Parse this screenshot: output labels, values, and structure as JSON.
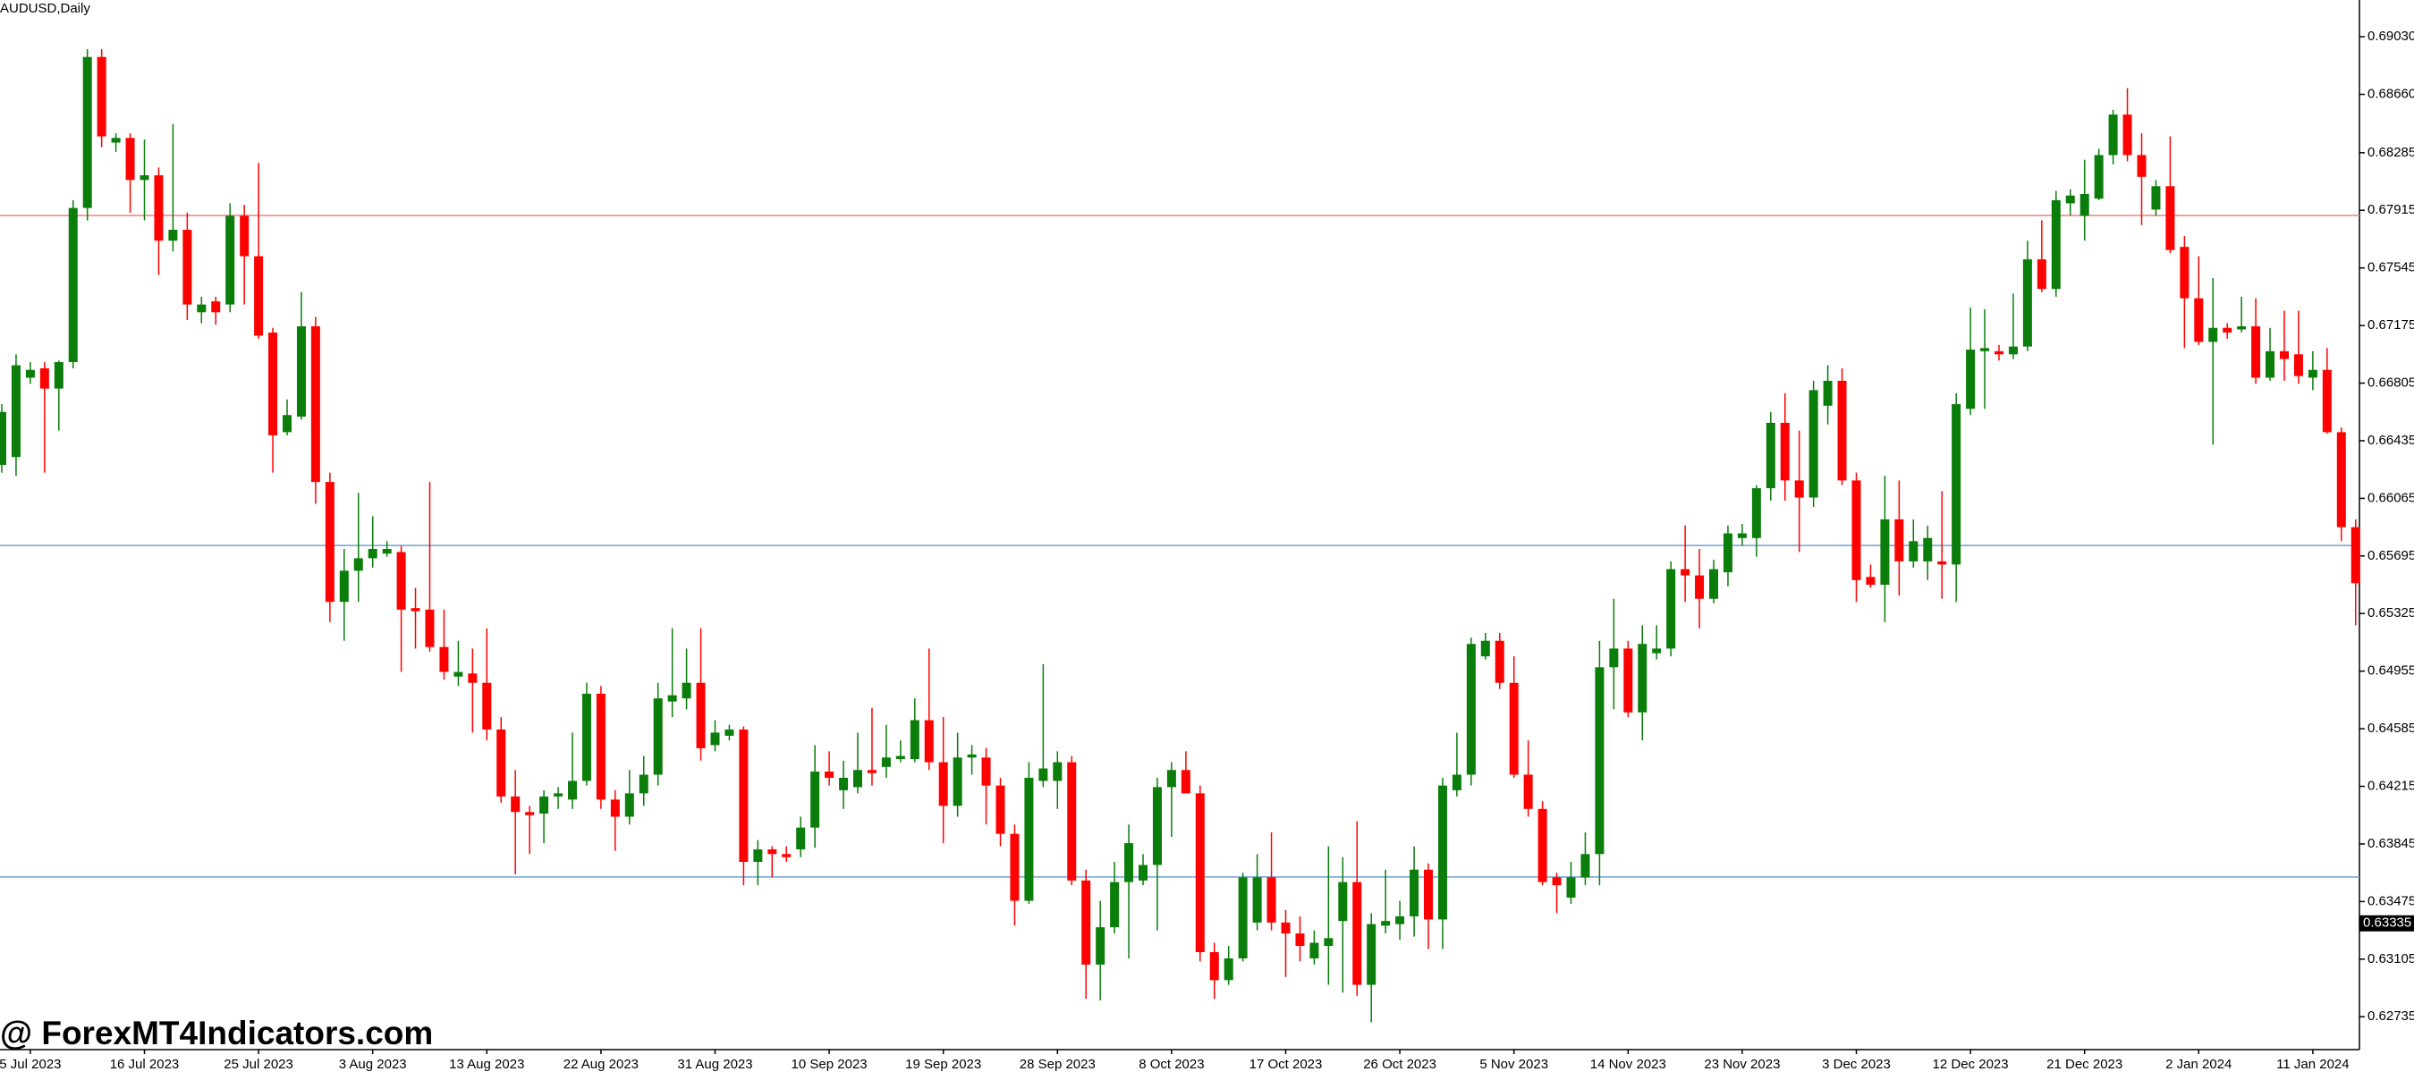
{
  "chart_data": {
    "type": "candlestick",
    "title": "AUDUSD,Daily",
    "watermark": "@ ForexMT4Indicators.com",
    "categories": [
      null,
      null,
      "5 Jul 2023",
      null,
      null,
      null,
      null,
      null,
      null,
      null,
      "16 Jul 2023",
      null,
      null,
      null,
      null,
      null,
      null,
      null,
      "25 Jul 2023",
      null,
      null,
      null,
      null,
      null,
      null,
      null,
      "3 Aug 2023",
      null,
      null,
      null,
      null,
      null,
      null,
      null,
      "13 Aug 2023",
      null,
      null,
      null,
      null,
      null,
      null,
      null,
      "22 Aug 2023",
      null,
      null,
      null,
      null,
      null,
      null,
      null,
      "31 Aug 2023",
      null,
      null,
      null,
      null,
      null,
      null,
      null,
      "10 Sep 2023",
      null,
      null,
      null,
      null,
      null,
      null,
      null,
      "19 Sep 2023",
      null,
      null,
      null,
      null,
      null,
      null,
      null,
      "28 Sep 2023",
      null,
      null,
      null,
      null,
      null,
      null,
      null,
      "8 Oct 2023",
      null,
      null,
      null,
      null,
      null,
      null,
      null,
      "17 Oct 2023",
      null,
      null,
      null,
      null,
      null,
      null,
      null,
      "26 Oct 2023",
      null,
      null,
      null,
      null,
      null,
      null,
      null,
      "5 Nov 2023",
      null,
      null,
      null,
      null,
      null,
      null,
      null,
      "14 Nov 2023",
      null,
      null,
      null,
      null,
      null,
      null,
      null,
      "23 Nov 2023",
      null,
      null,
      null,
      null,
      null,
      null,
      null,
      "3 Dec 2023",
      null,
      null,
      null,
      null,
      null,
      null,
      null,
      "12 Dec 2023",
      null,
      null,
      null,
      null,
      null,
      null,
      null,
      "21 Dec 2023",
      null,
      null,
      null,
      null,
      null,
      null,
      null,
      "2 Jan 2024",
      null,
      null,
      null,
      null,
      null,
      null,
      null,
      "11 Jan 2024",
      null,
      null,
      null
    ],
    "open": [
      0.6628,
      0.6633,
      0.6684,
      0.669,
      0.6677,
      0.6694,
      0.6793,
      0.689,
      0.6835,
      0.6838,
      0.6811,
      0.6814,
      0.6772,
      0.6779,
      0.6726,
      0.6733,
      0.6731,
      0.6788,
      0.6762,
      0.6713,
      0.6649,
      0.6659,
      0.6717,
      0.6617,
      0.654,
      0.656,
      0.6568,
      0.6571,
      0.6572,
      0.6536,
      0.6535,
      0.6511,
      0.6492,
      0.6494,
      0.6488,
      0.6458,
      0.6415,
      0.6405,
      0.6404,
      0.6415,
      0.6413,
      0.6425,
      0.6481,
      0.6413,
      0.6402,
      0.6417,
      0.6429,
      0.6476,
      0.6478,
      0.6488,
      0.6448,
      0.6454,
      0.6458,
      0.6373,
      0.6381,
      0.6378,
      0.6381,
      0.6395,
      0.6431,
      0.6419,
      0.6421,
      0.6432,
      0.6434,
      0.6439,
      0.6439,
      0.6464,
      0.6437,
      0.6409,
      0.644,
      0.644,
      0.6422,
      0.6391,
      0.6348,
      0.6425,
      0.6425,
      0.6437,
      0.6361,
      0.6307,
      0.6331,
      0.636,
      0.6361,
      0.6371,
      0.6421,
      0.6432,
      0.6417,
      0.6315,
      0.6297,
      0.6311,
      0.6334,
      0.6363,
      0.6334,
      0.6327,
      0.6311,
      0.6319,
      0.6335,
      0.636,
      0.6294,
      0.6332,
      0.6333,
      0.6338,
      0.6368,
      0.6336,
      0.6419,
      0.6429,
      0.6505,
      0.6515,
      0.6488,
      0.6429,
      0.6407,
      0.6363,
      0.635,
      0.6363,
      0.6378,
      0.6498,
      0.651,
      0.6469,
      0.6507,
      0.651,
      0.6561,
      0.6557,
      0.6542,
      0.6559,
      0.6581,
      0.6581,
      0.6613,
      0.6655,
      0.6618,
      0.6607,
      0.6666,
      0.6682,
      0.6618,
      0.6556,
      0.6551,
      0.6593,
      0.6566,
      0.6566,
      0.6566,
      0.6564,
      0.6664,
      0.6701,
      0.6701,
      0.6699,
      0.6704,
      0.676,
      0.6741,
      0.6796,
      0.6788,
      0.6799,
      0.6827,
      0.6853,
      0.6827,
      0.6792,
      0.6807,
      0.6768,
      0.6735,
      0.6707,
      0.6716,
      0.6715,
      0.6717,
      0.6684,
      0.6701,
      0.6699,
      0.6684,
      0.6689,
      0.6649,
      0.6588
    ],
    "high": [
      0.6667,
      0.6699,
      0.6694,
      0.6694,
      0.6695,
      0.6798,
      0.6895,
      0.6895,
      0.6841,
      0.6841,
      0.6837,
      0.6819,
      0.6847,
      0.679,
      0.6736,
      0.6736,
      0.6796,
      0.6795,
      0.6822,
      0.6716,
      0.667,
      0.6739,
      0.6723,
      0.6623,
      0.6574,
      0.661,
      0.6595,
      0.6579,
      0.6576,
      0.6549,
      0.6617,
      0.6535,
      0.6515,
      0.651,
      0.6523,
      0.6466,
      0.6432,
      0.6409,
      0.6419,
      0.6421,
      0.6456,
      0.6488,
      0.6486,
      0.6419,
      0.6432,
      0.6441,
      0.6488,
      0.6523,
      0.651,
      0.6523,
      0.6464,
      0.6461,
      0.646,
      0.6387,
      0.6383,
      0.6383,
      0.6402,
      0.6448,
      0.6444,
      0.6438,
      0.6456,
      0.6472,
      0.6461,
      0.6451,
      0.6478,
      0.651,
      0.6466,
      0.6456,
      0.6448,
      0.6446,
      0.6427,
      0.6397,
      0.6437,
      0.65,
      0.6444,
      0.6441,
      0.6368,
      0.6348,
      0.6373,
      0.6397,
      0.6378,
      0.6427,
      0.6437,
      0.6444,
      0.6422,
      0.6321,
      0.6319,
      0.6366,
      0.6378,
      0.6392,
      0.6342,
      0.6338,
      0.6329,
      0.6383,
      0.6376,
      0.6399,
      0.634,
      0.6368,
      0.6348,
      0.6383,
      0.6372,
      0.6427,
      0.6456,
      0.6517,
      0.652,
      0.652,
      0.6505,
      0.6451,
      0.6412,
      0.6366,
      0.6373,
      0.6392,
      0.6515,
      0.6542,
      0.6515,
      0.6525,
      0.6525,
      0.6566,
      0.6589,
      0.6574,
      0.6567,
      0.6589,
      0.659,
      0.6615,
      0.6662,
      0.6674,
      0.665,
      0.6682,
      0.6692,
      0.669,
      0.6623,
      0.6564,
      0.6621,
      0.6618,
      0.6593,
      0.6589,
      0.6611,
      0.6674,
      0.6729,
      0.6728,
      0.6705,
      0.6738,
      0.6772,
      0.6785,
      0.6804,
      0.6805,
      0.6824,
      0.6831,
      0.6856,
      0.687,
      0.6841,
      0.6811,
      0.6839,
      0.6775,
      0.6762,
      0.6748,
      0.6719,
      0.6736,
      0.6735,
      0.6716,
      0.6727,
      0.6727,
      0.6701,
      0.6703,
      0.6652,
      0.6593
    ],
    "low": [
      0.6623,
      0.6621,
      0.668,
      0.6623,
      0.665,
      0.669,
      0.6785,
      0.6832,
      0.6829,
      0.679,
      0.6785,
      0.675,
      0.6765,
      0.6721,
      0.6719,
      0.6718,
      0.6726,
      0.6731,
      0.6709,
      0.6623,
      0.6647,
      0.6657,
      0.6603,
      0.6527,
      0.6515,
      0.654,
      0.6562,
      0.6569,
      0.6495,
      0.651,
      0.6508,
      0.649,
      0.6486,
      0.6456,
      0.6451,
      0.6411,
      0.6365,
      0.6378,
      0.6385,
      0.6407,
      0.6407,
      0.6422,
      0.6407,
      0.638,
      0.6397,
      0.6409,
      0.6422,
      0.6466,
      0.6471,
      0.6438,
      0.6444,
      0.6451,
      0.6358,
      0.6358,
      0.6363,
      0.6373,
      0.6376,
      0.6382,
      0.6422,
      0.6407,
      0.6417,
      0.6422,
      0.6427,
      0.6437,
      0.6437,
      0.6432,
      0.6385,
      0.6402,
      0.6429,
      0.6397,
      0.6383,
      0.6332,
      0.6346,
      0.6421,
      0.6407,
      0.6358,
      0.6285,
      0.6284,
      0.6327,
      0.6311,
      0.6358,
      0.6329,
      0.6389,
      0.6417,
      0.6309,
      0.6285,
      0.6294,
      0.6309,
      0.6329,
      0.6329,
      0.6299,
      0.6309,
      0.6307,
      0.6294,
      0.6289,
      0.6287,
      0.627,
      0.6327,
      0.6323,
      0.6325,
      0.6317,
      0.6317,
      0.6415,
      0.6422,
      0.6503,
      0.6484,
      0.6427,
      0.6402,
      0.6358,
      0.634,
      0.6346,
      0.6358,
      0.6358,
      0.6471,
      0.6466,
      0.6451,
      0.6503,
      0.6505,
      0.654,
      0.6523,
      0.6539,
      0.655,
      0.6576,
      0.6569,
      0.6605,
      0.6605,
      0.6572,
      0.6601,
      0.6654,
      0.6615,
      0.654,
      0.6549,
      0.6527,
      0.6544,
      0.6562,
      0.6554,
      0.6542,
      0.654,
      0.666,
      0.6664,
      0.6695,
      0.6696,
      0.6701,
      0.6739,
      0.6736,
      0.6788,
      0.6772,
      0.6798,
      0.6821,
      0.6823,
      0.6782,
      0.6788,
      0.6764,
      0.6703,
      0.6705,
      0.6641,
      0.6709,
      0.6713,
      0.668,
      0.6682,
      0.6682,
      0.668,
      0.6676,
      0.6648,
      0.6579,
      0.6525
    ],
    "close": [
      0.6662,
      0.6692,
      0.6689,
      0.6677,
      0.6694,
      0.6793,
      0.689,
      0.6839,
      0.6838,
      0.6811,
      0.6814,
      0.6772,
      0.6779,
      0.6731,
      0.6731,
      0.6726,
      0.6788,
      0.6762,
      0.6711,
      0.6647,
      0.666,
      0.6717,
      0.6617,
      0.654,
      0.656,
      0.6568,
      0.6574,
      0.6574,
      0.6535,
      0.6534,
      0.6511,
      0.6495,
      0.6495,
      0.6488,
      0.6458,
      0.6415,
      0.6405,
      0.6403,
      0.6415,
      0.6417,
      0.6425,
      0.6481,
      0.6413,
      0.6402,
      0.6417,
      0.6429,
      0.6478,
      0.648,
      0.6488,
      0.6446,
      0.6456,
      0.6458,
      0.6373,
      0.6381,
      0.6378,
      0.6376,
      0.6395,
      0.6431,
      0.6427,
      0.6427,
      0.6432,
      0.643,
      0.644,
      0.6441,
      0.6464,
      0.6437,
      0.6409,
      0.644,
      0.6442,
      0.6422,
      0.6391,
      0.6348,
      0.6427,
      0.6433,
      0.6437,
      0.6361,
      0.6307,
      0.6331,
      0.636,
      0.6385,
      0.6371,
      0.6421,
      0.6432,
      0.6417,
      0.6315,
      0.6297,
      0.6311,
      0.6363,
      0.6363,
      0.6334,
      0.6327,
      0.6319,
      0.6321,
      0.6324,
      0.636,
      0.6294,
      0.6333,
      0.6335,
      0.6338,
      0.6368,
      0.6336,
      0.6422,
      0.6429,
      0.6513,
      0.6515,
      0.6488,
      0.6429,
      0.6407,
      0.636,
      0.6358,
      0.6363,
      0.6378,
      0.6498,
      0.651,
      0.6469,
      0.6513,
      0.651,
      0.6561,
      0.6557,
      0.6542,
      0.6561,
      0.6584,
      0.6584,
      0.6613,
      0.6655,
      0.6618,
      0.6607,
      0.6676,
      0.6682,
      0.6618,
      0.6554,
      0.6551,
      0.6593,
      0.6566,
      0.6579,
      0.6581,
      0.6564,
      0.6667,
      0.6702,
      0.6703,
      0.6699,
      0.6704,
      0.676,
      0.6741,
      0.6798,
      0.6801,
      0.6802,
      0.6827,
      0.6853,
      0.6827,
      0.6813,
      0.6807,
      0.6766,
      0.6735,
      0.6707,
      0.6716,
      0.6713,
      0.6717,
      0.6684,
      0.6701,
      0.6696,
      0.6685,
      0.6689,
      0.6649,
      0.6588,
      0.6552
    ],
    "up_color": "#0b7d0b",
    "down_color": "#ff0000",
    "ylim": [
      0.62524,
      0.69266
    ],
    "yticks": [
      {
        "value": 0.6903,
        "label": "0.69030"
      },
      {
        "value": 0.6866,
        "label": "0.68660"
      },
      {
        "value": 0.68285,
        "label": "0.68285"
      },
      {
        "value": 0.67915,
        "label": "0.67915"
      },
      {
        "value": 0.67545,
        "label": "0.67545"
      },
      {
        "value": 0.67175,
        "label": "0.67175"
      },
      {
        "value": 0.66805,
        "label": "0.66805"
      },
      {
        "value": 0.66435,
        "label": "0.66435"
      },
      {
        "value": 0.66065,
        "label": "0.66065"
      },
      {
        "value": 0.65695,
        "label": "0.65695"
      },
      {
        "value": 0.65325,
        "label": "0.65325"
      },
      {
        "value": 0.64955,
        "label": "0.64955"
      },
      {
        "value": 0.64585,
        "label": "0.64585"
      },
      {
        "value": 0.64215,
        "label": "0.64215"
      },
      {
        "value": 0.63845,
        "label": "0.63845"
      },
      {
        "value": 0.63475,
        "label": "0.63475"
      },
      {
        "value": 0.63105,
        "label": "0.63105"
      },
      {
        "value": 0.62735,
        "label": "0.62735"
      }
    ],
    "hlines": [
      {
        "value": 0.67882,
        "color": "#f08080"
      },
      {
        "value": 0.65762,
        "color": "#6fa0d0"
      },
      {
        "value": 0.63633,
        "color": "#6fa0d0"
      }
    ],
    "price_label": 0.63335
  }
}
